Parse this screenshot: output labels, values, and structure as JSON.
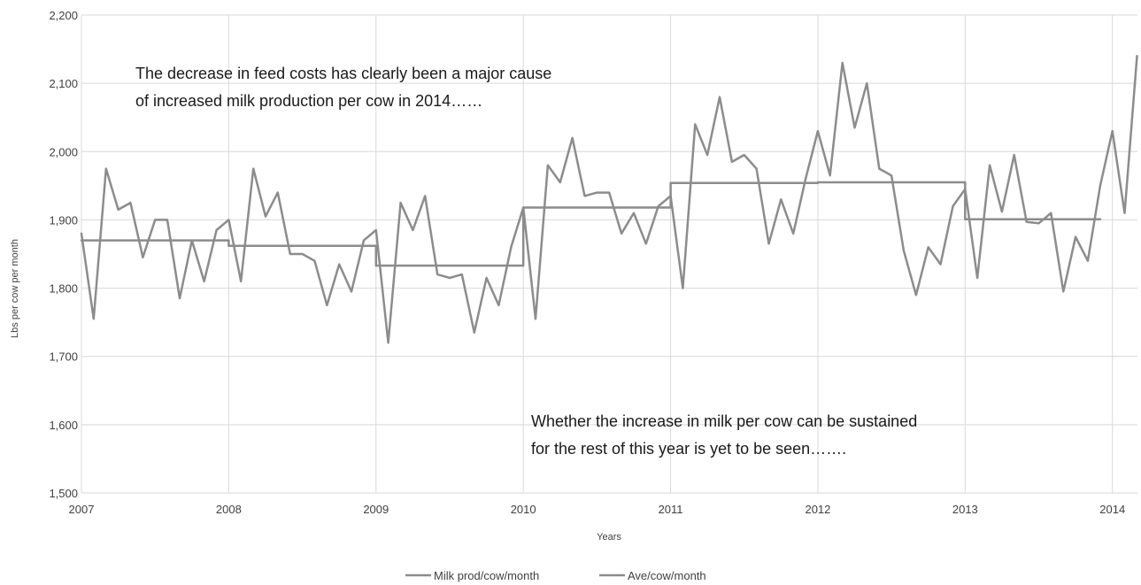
{
  "chart_data": {
    "type": "line",
    "title": "",
    "xlabel": "Years",
    "ylabel": "Lbs per cow per month",
    "ylim": [
      1500,
      2200
    ],
    "xlim": [
      2007,
      2014.17
    ],
    "yticks": [
      1500,
      1600,
      1700,
      1800,
      1900,
      2000,
      2100,
      2200
    ],
    "ytick_labels": [
      "1,500",
      "1,600",
      "1,700",
      "1,800",
      "1,900",
      "2,000",
      "2,100",
      "2,200"
    ],
    "xticks": [
      2007,
      2008,
      2009,
      2010,
      2011,
      2012,
      2013,
      2014
    ],
    "xtick_labels": [
      "2007",
      "2008",
      "2009",
      "2010",
      "2011",
      "2012",
      "2013",
      "2014"
    ],
    "grid": true,
    "legend_position": "bottom",
    "annotations": [
      {
        "lines": [
          "The decrease in feed costs has clearly been a major cause",
          "of increased milk production per cow in 2014……"
        ]
      },
      {
        "lines": [
          "Whether the increase in milk per cow can be sustained",
          "for the rest of this year is yet to be seen……."
        ]
      }
    ],
    "series": [
      {
        "name": "Milk prod/cow/month",
        "color": "#8c8c8c",
        "x": [
          2007.0,
          2007.083,
          2007.167,
          2007.25,
          2007.333,
          2007.417,
          2007.5,
          2007.583,
          2007.667,
          2007.75,
          2007.833,
          2007.917,
          2008.0,
          2008.083,
          2008.167,
          2008.25,
          2008.333,
          2008.417,
          2008.5,
          2008.583,
          2008.667,
          2008.75,
          2008.833,
          2008.917,
          2009.0,
          2009.083,
          2009.167,
          2009.25,
          2009.333,
          2009.417,
          2009.5,
          2009.583,
          2009.667,
          2009.75,
          2009.833,
          2009.917,
          2010.0,
          2010.083,
          2010.167,
          2010.25,
          2010.333,
          2010.417,
          2010.5,
          2010.583,
          2010.667,
          2010.75,
          2010.833,
          2010.917,
          2011.0,
          2011.083,
          2011.167,
          2011.25,
          2011.333,
          2011.417,
          2011.5,
          2011.583,
          2011.667,
          2011.75,
          2011.833,
          2011.917,
          2012.0,
          2012.083,
          2012.167,
          2012.25,
          2012.333,
          2012.417,
          2012.5,
          2012.583,
          2012.667,
          2012.75,
          2012.833,
          2012.917,
          2013.0,
          2013.083,
          2013.167,
          2013.25,
          2013.333,
          2013.417,
          2013.5,
          2013.583,
          2013.667,
          2013.75,
          2013.833,
          2013.917,
          2014.0,
          2014.083,
          2014.167
        ],
        "values": [
          1880,
          1755,
          1975,
          1915,
          1925,
          1845,
          1900,
          1900,
          1785,
          1870,
          1810,
          1885,
          1900,
          1810,
          1975,
          1905,
          1940,
          1850,
          1850,
          1840,
          1775,
          1835,
          1795,
          1870,
          1885,
          1720,
          1925,
          1885,
          1935,
          1820,
          1815,
          1820,
          1735,
          1815,
          1775,
          1860,
          1918,
          1755,
          1980,
          1955,
          2020,
          1935,
          1940,
          1940,
          1880,
          1910,
          1865,
          1920,
          1935,
          1800,
          2040,
          1995,
          2080,
          1985,
          1995,
          1975,
          1865,
          1930,
          1880,
          1960,
          2030,
          1965,
          2130,
          2035,
          2100,
          1975,
          1965,
          1855,
          1790,
          1860,
          1835,
          1920,
          1945,
          1815,
          1980,
          1912,
          1995,
          1897,
          1895,
          1910,
          1795,
          1875,
          1840,
          1950,
          2030,
          1910,
          2140
        ]
      },
      {
        "name": "Ave/cow/month",
        "color": "#8c8c8c",
        "x": [
          2007.0,
          2008.0,
          2008.0,
          2009.0,
          2009.0,
          2010.0,
          2010.0,
          2011.0,
          2011.0,
          2012.0,
          2012.0,
          2013.0,
          2013.0,
          2013.917
        ],
        "values": [
          1870,
          1870,
          1862,
          1862,
          1833,
          1833,
          1918,
          1918,
          1954,
          1954,
          1955,
          1955,
          1901,
          1901
        ]
      }
    ]
  }
}
